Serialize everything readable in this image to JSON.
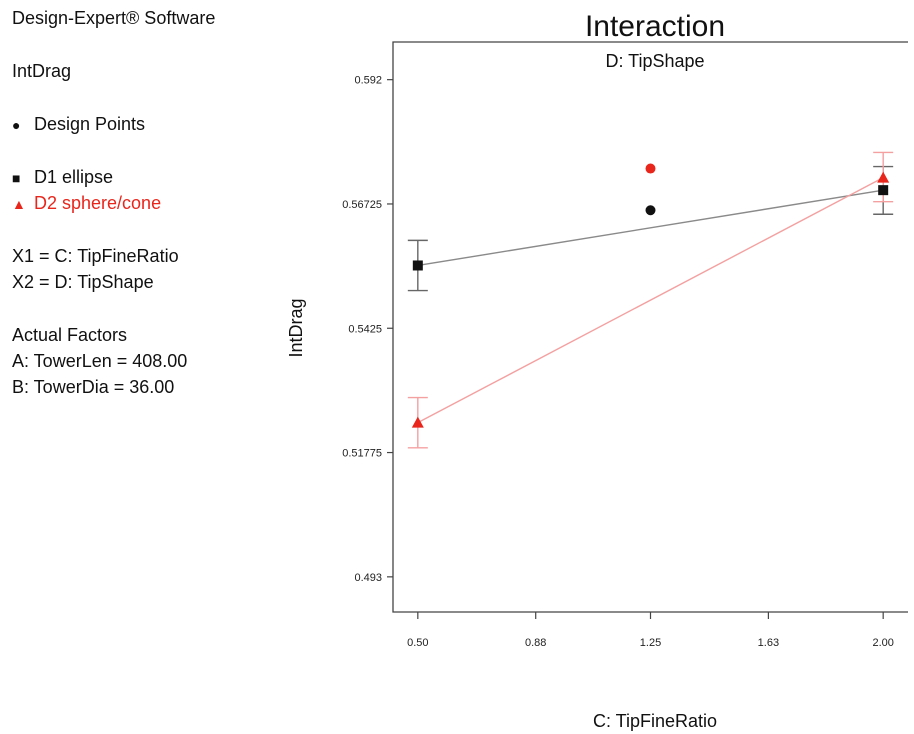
{
  "panel": {
    "software": "Design-Expert® Software",
    "response": "IntDrag",
    "legend": {
      "design_points": "Design Points",
      "d1": "D1 ellipse",
      "d2": "D2 sphere/cone"
    },
    "factors": {
      "x1": "X1 = C: TipFineRatio",
      "x2": "X2 = D: TipShape",
      "actual_heading": "Actual Factors",
      "a": "A: TowerLen = 408.00",
      "b": "B: TowerDia = 36.00"
    }
  },
  "colors": {
    "d1": "#111111",
    "d2": "#e8261c",
    "d1_line": "#8a8a8a",
    "d2_line": "#f4a0a0",
    "axis": "#444444"
  },
  "chart_data": {
    "type": "line",
    "title": "Interaction",
    "subtitle": "D: TipShape",
    "xlabel": "C: TipFineRatio",
    "ylabel": "IntDrag",
    "xlim": [
      0.42,
      2.08
    ],
    "ylim": [
      0.486,
      0.5995
    ],
    "x_ticks": [
      0.5,
      0.88,
      1.25,
      1.63,
      2.0
    ],
    "x_tick_labels": [
      "0.50",
      "0.88",
      "1.25",
      "1.63",
      "2.00"
    ],
    "y_ticks": [
      0.493,
      0.51775,
      0.5425,
      0.56725,
      0.592
    ],
    "y_tick_labels": [
      "0.493",
      "0.51775",
      "0.5425",
      "0.56725",
      "0.592"
    ],
    "series": [
      {
        "name": "D1 ellipse",
        "marker": "square",
        "x": [
          0.5,
          2.0
        ],
        "y": [
          0.555,
          0.57
        ],
        "err_low": [
          0.55,
          0.5652
        ],
        "err_high": [
          0.56,
          0.5747
        ]
      },
      {
        "name": "D2 sphere/cone",
        "marker": "triangle",
        "x": [
          0.5,
          2.0
        ],
        "y": [
          0.5237,
          0.5725
        ],
        "err_low": [
          0.5187,
          0.5677
        ],
        "err_high": [
          0.5287,
          0.5775
        ]
      }
    ],
    "design_points": [
      {
        "x": 1.25,
        "y": 0.5743,
        "group": "D2 sphere/cone"
      },
      {
        "x": 1.25,
        "y": 0.566,
        "group": "D1 ellipse"
      }
    ]
  }
}
